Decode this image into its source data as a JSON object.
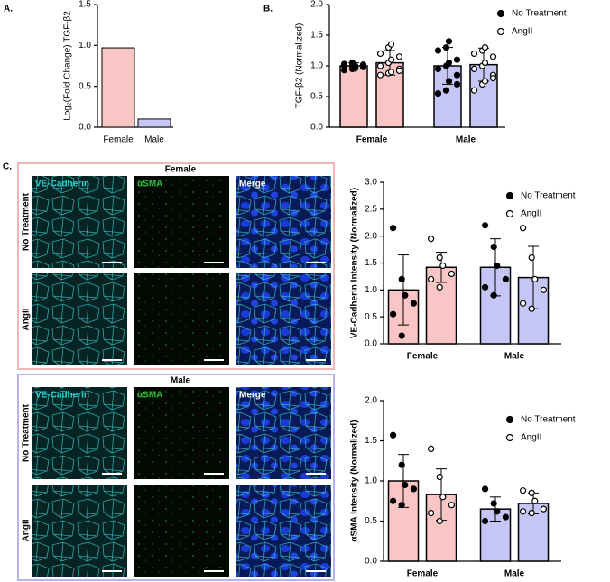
{
  "figure": {
    "panel_labels": [
      "A.",
      "B.",
      "C."
    ],
    "image_panels": [
      {
        "title": "Female",
        "columns": [
          "VE-Cadherin",
          "αSMA",
          "Merge"
        ],
        "rows": [
          "No Treatment",
          "AngII"
        ]
      },
      {
        "title": "Male",
        "columns": [
          "VE-Cadherin",
          "αSMA",
          "Merge"
        ],
        "rows": [
          "No Treatment",
          "AngII"
        ]
      }
    ]
  },
  "chart_data": [
    {
      "type": "bar",
      "ylabel": "Log₂(Fold Change) TGF-β2",
      "categories": [
        "Female",
        "Male"
      ],
      "values": [
        0.97,
        0.1
      ],
      "colors": [
        "#f9c5c5",
        "#c6c6f6"
      ],
      "ylim": [
        0,
        1.5
      ],
      "yticks": [
        {
          "value": 0,
          "label": "0.0"
        },
        0.5,
        {
          "value": 1,
          "label": "1.0"
        },
        1.5
      ]
    },
    {
      "type": "bar",
      "ylabel": "TGF-β2 (Normalized)",
      "categories": [
        "Female",
        "Male"
      ],
      "category_colors": [
        "#f9c5c5",
        "#c6c6f6"
      ],
      "legend": "upper right",
      "ylim": [
        0,
        2
      ],
      "yticks": [
        {
          "value": 0,
          "label": "0.0"
        },
        0.5,
        {
          "value": 1,
          "label": "1.0"
        },
        1.5,
        {
          "value": 2,
          "label": "2.0"
        }
      ],
      "series": [
        {
          "name": "No Treatment",
          "marker": "filled",
          "values": [
            1.0,
            1.0
          ],
          "errors": [
            0.05,
            0.3
          ],
          "points": [
            [
              0.93,
              0.95,
              0.97,
              0.98,
              1.0,
              1.0,
              1.0,
              1.02,
              1.03,
              1.05,
              0.96,
              1.01
            ],
            [
              0.55,
              0.6,
              0.75,
              0.85,
              0.95,
              1.0,
              1.05,
              1.1,
              1.25,
              1.3,
              1.4,
              0.7
            ]
          ]
        },
        {
          "name": "AngII",
          "marker": "open",
          "values": [
            1.05,
            1.02
          ],
          "errors": [
            0.2,
            0.27
          ],
          "points": [
            [
              0.85,
              0.88,
              0.9,
              0.95,
              1.0,
              1.05,
              1.1,
              1.15,
              1.2,
              1.3,
              1.35,
              0.92
            ],
            [
              0.6,
              0.7,
              0.75,
              0.85,
              0.95,
              1.0,
              1.05,
              1.15,
              1.2,
              1.25,
              1.3,
              0.8
            ]
          ]
        }
      ]
    },
    {
      "type": "bar",
      "ylabel": "VE-Cadherin Intensity (Normalized)",
      "categories": [
        "Female",
        "Male"
      ],
      "category_colors": [
        "#f9c5c5",
        "#c6c6f6"
      ],
      "legend": "upper right",
      "ylim": [
        0,
        3
      ],
      "yticks": [
        {
          "value": 0,
          "label": "0.0"
        },
        0.5,
        {
          "value": 1,
          "label": "1.0"
        },
        1.5,
        {
          "value": 2,
          "label": "2.0"
        },
        2.5,
        {
          "value": 3,
          "label": "3.0"
        }
      ],
      "series": [
        {
          "name": "No Treatment",
          "marker": "filled",
          "values": [
            1.0,
            1.42
          ],
          "errors": [
            0.65,
            0.53
          ],
          "points": [
            [
              2.15,
              1.2,
              0.9,
              0.75,
              0.55,
              0.15
            ],
            [
              2.2,
              1.8,
              1.45,
              1.2,
              1.05,
              0.9
            ]
          ]
        },
        {
          "name": "AngII",
          "marker": "open",
          "values": [
            1.42,
            1.23
          ],
          "errors": [
            0.28,
            0.58
          ],
          "points": [
            [
              1.95,
              1.6,
              1.45,
              1.3,
              1.2,
              1.05
            ],
            [
              2.15,
              1.6,
              1.2,
              1.0,
              0.75,
              0.65
            ]
          ]
        }
      ]
    },
    {
      "type": "bar",
      "ylabel": "αSMA Intensity (Normalized)",
      "categories": [
        "Female",
        "Male"
      ],
      "category_colors": [
        "#f9c5c5",
        "#c6c6f6"
      ],
      "legend": "upper right",
      "ylim": [
        0,
        2
      ],
      "yticks": [
        {
          "value": 0,
          "label": "0.0"
        },
        0.5,
        {
          "value": 1,
          "label": "1.0"
        },
        1.5,
        {
          "value": 2,
          "label": "2.0"
        }
      ],
      "series": [
        {
          "name": "No Treatment",
          "marker": "filled",
          "values": [
            1.0,
            0.65
          ],
          "errors": [
            0.33,
            0.15
          ],
          "points": [
            [
              1.57,
              1.2,
              0.95,
              0.9,
              0.75,
              0.7
            ],
            [
              0.9,
              0.72,
              0.62,
              0.55,
              0.5
            ]
          ]
        },
        {
          "name": "AngII",
          "marker": "open",
          "values": [
            0.83,
            0.72
          ],
          "errors": [
            0.32,
            0.13
          ],
          "points": [
            [
              1.4,
              1.05,
              0.8,
              0.7,
              0.6,
              0.5
            ],
            [
              0.88,
              0.85,
              0.75,
              0.65,
              0.62,
              0.6
            ]
          ]
        }
      ]
    }
  ]
}
